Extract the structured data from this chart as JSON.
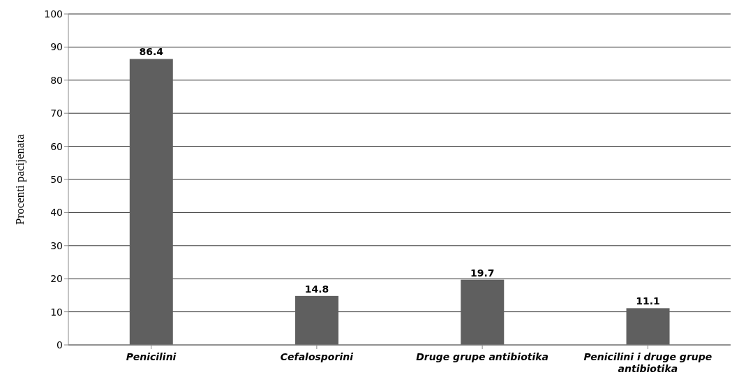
{
  "chart_data": {
    "type": "bar",
    "ylabel": "Procenti pacijenata",
    "categories": [
      "Penicilini",
      "Cefalosporini",
      "Druge grupe antibiotika",
      "Penicilini i druge grupe antibiotika"
    ],
    "values": [
      86.4,
      14.8,
      19.7,
      11.1
    ],
    "color": "#5f5f5f",
    "ylim": [
      0,
      100
    ],
    "yticks": [
      0,
      10,
      20,
      30,
      40,
      50,
      60,
      70,
      80,
      90,
      100
    ],
    "grid": "y",
    "data_labels": true
  }
}
